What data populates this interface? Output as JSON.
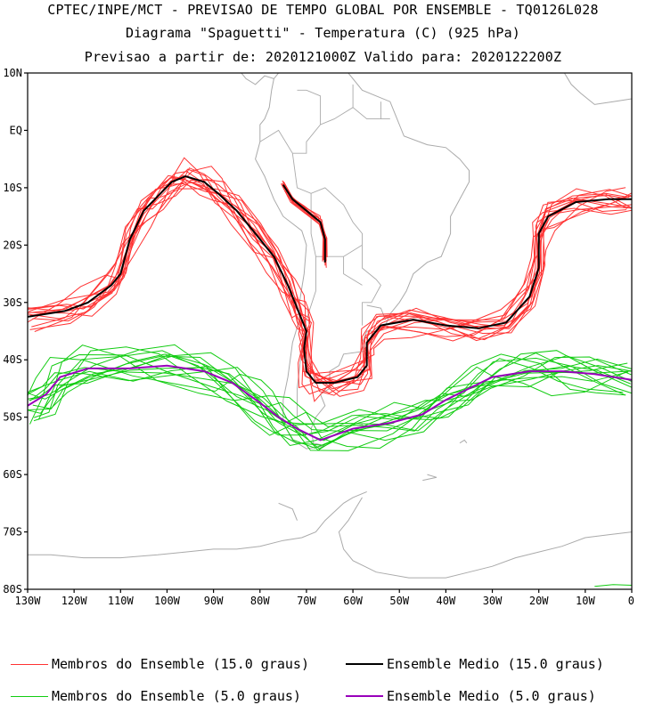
{
  "header": {
    "line1": "CPTEC/INPE/MCT - PREVISAO DE TEMPO GLOBAL POR ENSEMBLE - TQ0126L028",
    "line2": "Diagrama \"Spaguetti\" - Temperatura (C) (925 hPa)",
    "line3": "Previsao a partir de: 2020121000Z  Valido para: 2020122200Z"
  },
  "axes": {
    "lat_labels": [
      "10N",
      "EQ",
      "10S",
      "20S",
      "30S",
      "40S",
      "50S",
      "60S",
      "70S",
      "80S"
    ],
    "lon_labels": [
      "130W",
      "120W",
      "110W",
      "100W",
      "90W",
      "80W",
      "70W",
      "60W",
      "50W",
      "40W",
      "30W",
      "20W",
      "10W",
      "0"
    ]
  },
  "colors": {
    "members_15": "#ff3333",
    "mean_15": "#000000",
    "members_5": "#11cc11",
    "mean_5": "#9900bb",
    "coast": "#aaaaaa"
  },
  "legend": {
    "members_15_label": "Membros do Ensemble (15.0 graus)",
    "mean_15_label": "Ensemble Medio (15.0 graus)",
    "members_5_label": "Membros do Ensemble (5.0 graus)",
    "mean_5_label": "Ensemble Medio (5.0 graus)"
  },
  "isolines": {
    "mean_15_main": [
      [
        -130,
        -32.5
      ],
      [
        -122,
        -31.5
      ],
      [
        -117,
        -30
      ],
      [
        -112,
        -27
      ],
      [
        -110,
        -25
      ],
      [
        -108,
        -19
      ],
      [
        -105,
        -14
      ],
      [
        -102,
        -11.5
      ],
      [
        -99,
        -9
      ],
      [
        -96,
        -8
      ],
      [
        -92,
        -9
      ],
      [
        -89,
        -11
      ],
      [
        -85,
        -14
      ],
      [
        -81,
        -18
      ],
      [
        -77,
        -22
      ],
      [
        -74,
        -27
      ],
      [
        -72,
        -31
      ],
      [
        -71,
        -33
      ],
      [
        -70,
        -35
      ],
      [
        -70.5,
        -38
      ],
      [
        -70,
        -42
      ],
      [
        -68,
        -44
      ],
      [
        -64,
        -44
      ],
      [
        -59,
        -43
      ],
      [
        -57,
        -41
      ],
      [
        -57,
        -37
      ],
      [
        -54,
        -34
      ],
      [
        -47,
        -33
      ],
      [
        -40,
        -34
      ],
      [
        -33,
        -34.5
      ],
      [
        -27,
        -33.5
      ],
      [
        -22,
        -29
      ],
      [
        -20,
        -24
      ],
      [
        -20,
        -18
      ],
      [
        -18,
        -15
      ],
      [
        -12,
        -12.5
      ],
      [
        -5,
        -12
      ],
      [
        0,
        -12
      ]
    ],
    "mean_15_andes": [
      [
        -75,
        -9.5
      ],
      [
        -73,
        -12
      ],
      [
        -70,
        -14
      ],
      [
        -67,
        -16
      ],
      [
        -66,
        -19
      ],
      [
        -66,
        -23
      ]
    ],
    "mean_5": [
      [
        -130,
        -48
      ],
      [
        -126,
        -46
      ],
      [
        -123,
        -43
      ],
      [
        -117,
        -41.5
      ],
      [
        -108,
        -41.5
      ],
      [
        -100,
        -41
      ],
      [
        -92,
        -42
      ],
      [
        -86,
        -44
      ],
      [
        -80,
        -47.5
      ],
      [
        -76,
        -50
      ],
      [
        -72,
        -52
      ],
      [
        -67,
        -54
      ],
      [
        -60,
        -52
      ],
      [
        -52,
        -51
      ],
      [
        -45,
        -49.5
      ],
      [
        -40,
        -47
      ],
      [
        -35,
        -45
      ],
      [
        -30,
        -43
      ],
      [
        -22,
        -42
      ],
      [
        -15,
        -42
      ],
      [
        -8,
        -42.5
      ],
      [
        0,
        -43.5
      ]
    ]
  }
}
